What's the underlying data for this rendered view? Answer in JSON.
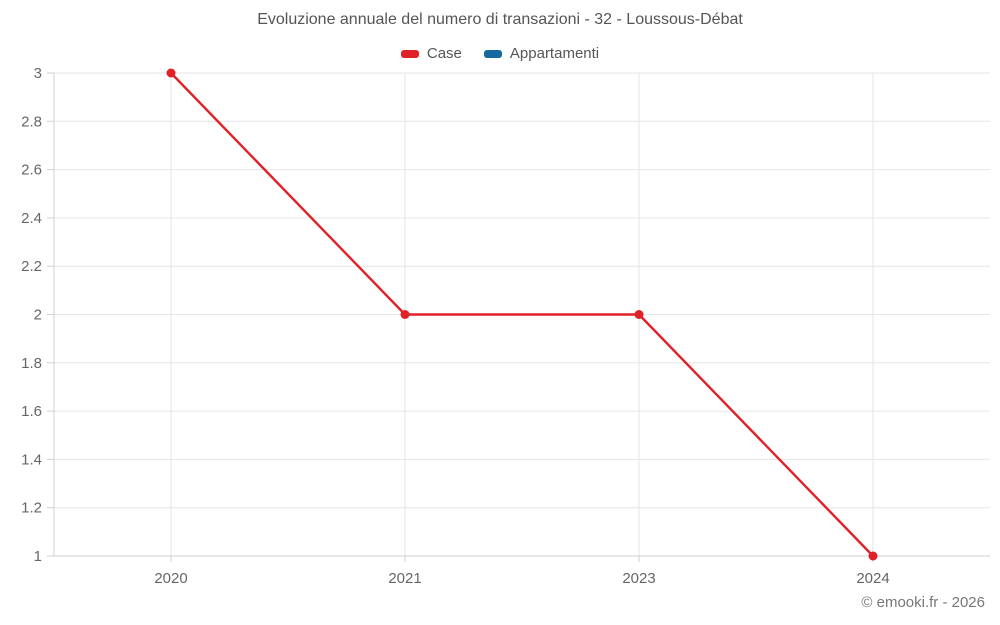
{
  "chart_data": {
    "type": "line",
    "title": "Evoluzione annuale del numero di transazioni - 32 - Loussous-Débat",
    "categories": [
      "2020",
      "2021",
      "2023",
      "2024"
    ],
    "series": [
      {
        "name": "Case",
        "color": "#e02128",
        "values": [
          3,
          2,
          2,
          1
        ]
      },
      {
        "name": "Appartamenti",
        "color": "#1668a0",
        "values": []
      }
    ],
    "ylim": [
      1,
      3
    ],
    "yticks": {
      "values": [
        1,
        1.2,
        1.4,
        1.6,
        1.8,
        2,
        2.2,
        2.4,
        2.6,
        2.8,
        3
      ],
      "labels": [
        "1",
        "1.2",
        "1.4",
        "1.6",
        "1.8",
        "2",
        "2.2",
        "2.4",
        "2.6",
        "2.8",
        "3"
      ]
    },
    "xlabel": "",
    "ylabel": "",
    "grid": true,
    "legend_position": "top"
  },
  "footer_credit": "© emooki.fr - 2026",
  "style_colors": {
    "grid_line": "#e6e6e6",
    "axis_line": "#d0d0d0",
    "tick_text": "#666666",
    "title_text": "#555555"
  }
}
